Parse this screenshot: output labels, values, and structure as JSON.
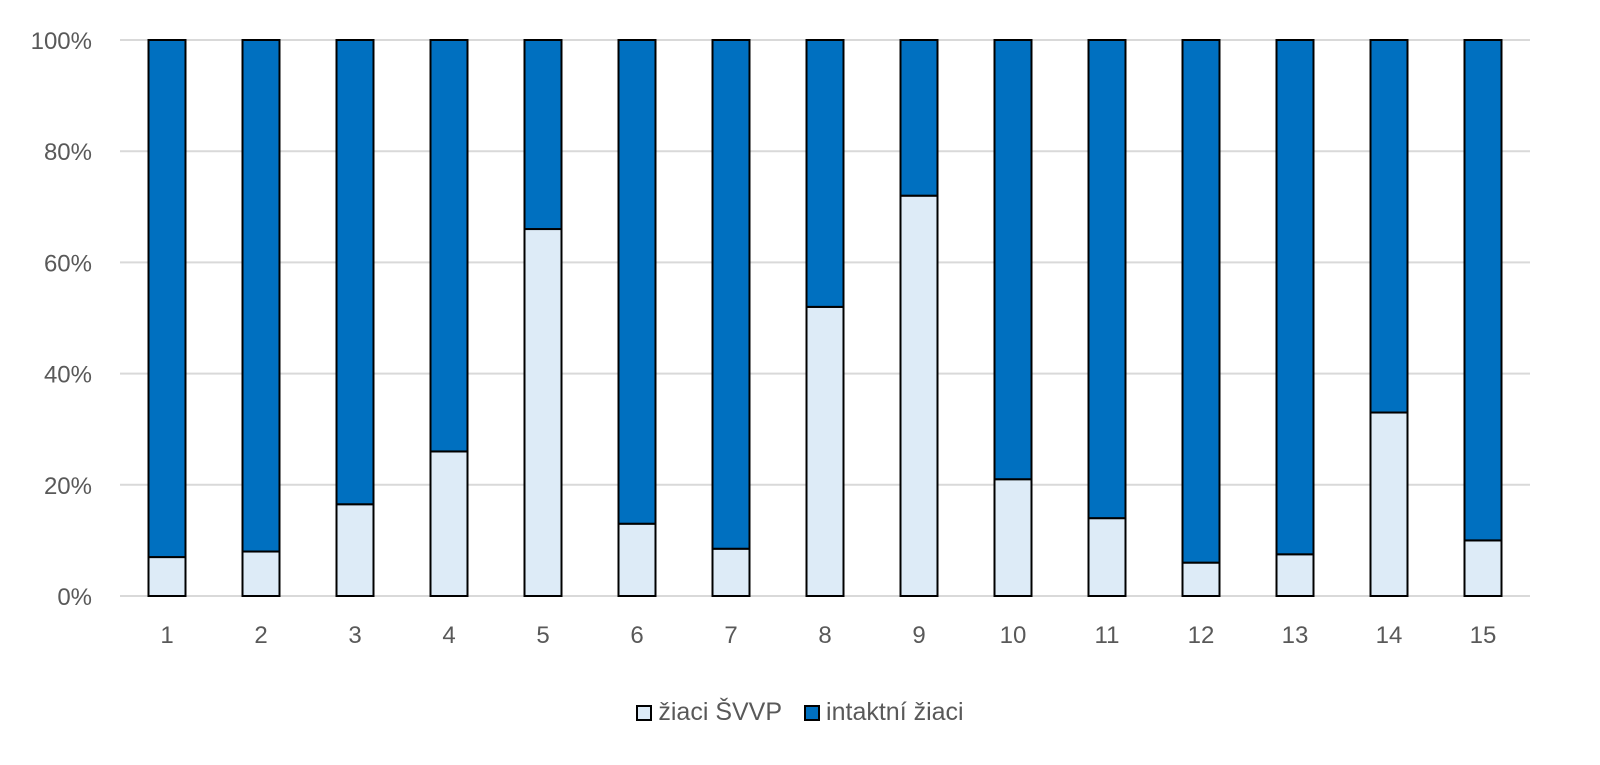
{
  "chart_data": {
    "type": "bar",
    "stacked": true,
    "percent": true,
    "categories": [
      "1",
      "2",
      "3",
      "4",
      "5",
      "6",
      "7",
      "8",
      "9",
      "10",
      "11",
      "12",
      "13",
      "14",
      "15"
    ],
    "series": [
      {
        "name": "žiaci ŠVVP",
        "color": "#DDEBF7",
        "values": [
          7,
          8,
          16.5,
          26,
          66,
          13,
          8.5,
          52,
          72,
          21,
          14,
          6,
          7.5,
          33,
          10
        ]
      },
      {
        "name": "intaktní žiaci",
        "color": "#0070C0",
        "values": [
          93,
          92,
          83.5,
          74,
          34,
          87,
          91.5,
          48,
          28,
          79,
          86,
          94,
          92.5,
          67,
          90
        ]
      }
    ],
    "yticks": [
      "0%",
      "20%",
      "40%",
      "60%",
      "80%",
      "100%"
    ],
    "ylim": [
      0,
      100
    ],
    "grid": true,
    "legend_position": "bottom"
  }
}
